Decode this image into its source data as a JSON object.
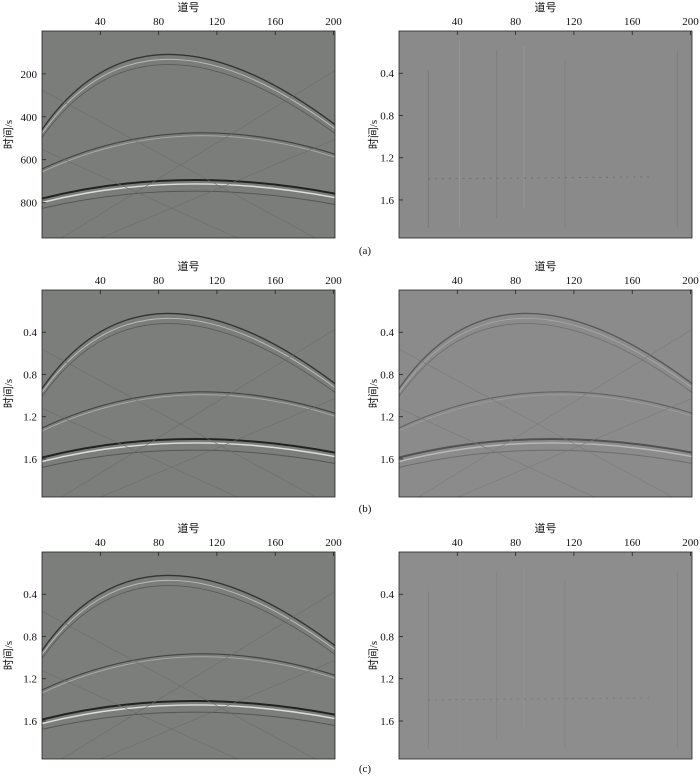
{
  "figure": {
    "panels": [
      {
        "xlabel": "道号",
        "ylabel": "时间/s",
        "xlim": [
          0,
          201
        ],
        "xticks": [
          40,
          80,
          120,
          160,
          200
        ],
        "ylim": [
          0,
          965
        ],
        "yticks": [
          200,
          400,
          600,
          800
        ]
      },
      {
        "xlabel": "道号",
        "ylabel": "时间/s",
        "xlim": [
          0,
          201
        ],
        "xticks": [
          40,
          80,
          120,
          160,
          200
        ],
        "ylim": [
          0,
          1.96
        ],
        "yticks": [
          0.4,
          0.8,
          1.2,
          1.6
        ]
      },
      {
        "xlabel": "道号",
        "ylabel": "时间/s",
        "xlim": [
          0,
          201
        ],
        "xticks": [
          40,
          80,
          120,
          160,
          200
        ],
        "ylim": [
          0,
          1.96
        ],
        "yticks": [
          0.4,
          0.8,
          1.2,
          1.6
        ]
      },
      {
        "xlabel": "道号",
        "ylabel": "时间/s",
        "xlim": [
          0,
          201
        ],
        "xticks": [
          40,
          80,
          120,
          160,
          200
        ],
        "ylim": [
          0,
          1.96
        ],
        "yticks": [
          0.4,
          0.8,
          1.2,
          1.6
        ]
      },
      {
        "xlabel": "道号",
        "ylabel": "时间/s",
        "xlim": [
          0,
          201
        ],
        "xticks": [
          40,
          80,
          120,
          160,
          200
        ],
        "ylim": [
          0,
          1.96
        ],
        "yticks": [
          0.4,
          0.8,
          1.2,
          1.6
        ]
      },
      {
        "xlabel": "道号",
        "ylabel": "时间/s",
        "xlim": [
          0,
          201
        ],
        "xticks": [
          40,
          80,
          120,
          160,
          200
        ],
        "ylim": [
          0,
          1.96
        ],
        "yticks": [
          0.4,
          0.8,
          1.2,
          1.6
        ]
      }
    ],
    "captions": [
      "(a)",
      "(b)",
      "(c)"
    ]
  }
}
